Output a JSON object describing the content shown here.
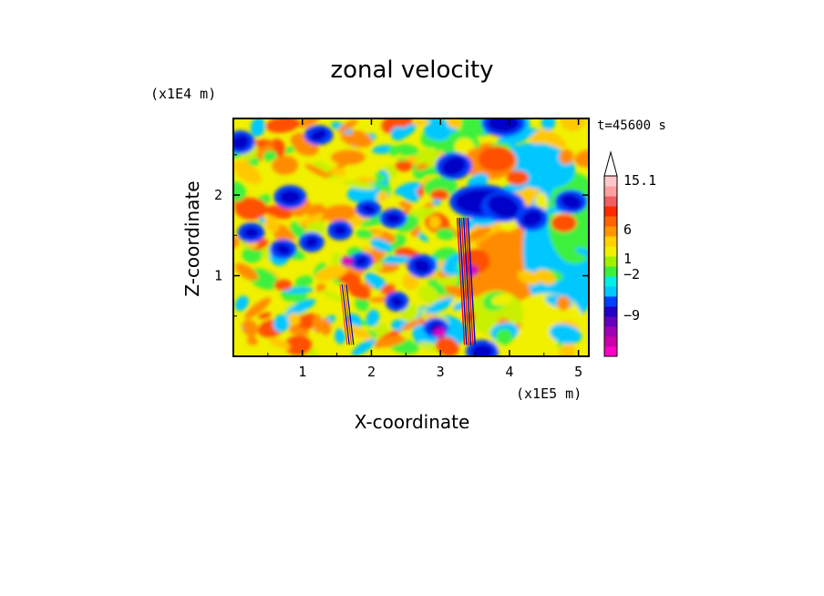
{
  "chart_data": {
    "type": "heatmap",
    "title": "zonal velocity",
    "time_label": "t=45600 s",
    "xlabel": "X-coordinate",
    "ylabel": "Z-coordinate",
    "x_unit": "(x1E5 m)",
    "y_unit": "(x1E4 m)",
    "xlim": [
      0.0,
      5.15
    ],
    "ylim": [
      0.0,
      2.95
    ],
    "x_ticks": [
      "1",
      "2",
      "3",
      "4",
      "5"
    ],
    "y_ticks": [
      "1",
      "2"
    ],
    "colorbar": {
      "tick_labels": [
        "15.1",
        "6",
        "1",
        "-2",
        "-9"
      ],
      "colors": [
        "#ff00c8",
        "#cc00a8",
        "#a000b4",
        "#6600c0",
        "#2200c8",
        "#0040ff",
        "#00c8ff",
        "#00f0e6",
        "#3cf03c",
        "#a0f000",
        "#f0f000",
        "#ffd200",
        "#ff9600",
        "#ff6400",
        "#ff2a00",
        "#f06060",
        "#ffa0a0",
        "#ffc8c8"
      ]
    },
    "contour_colors": {
      "magenta": "#ff00c8",
      "purple": "#a000b4",
      "dark_blue": "#0000c8",
      "blue": "#0040ff",
      "cyan": "#00c8ff",
      "green": "#3cf03c",
      "yellow_green": "#c8f000",
      "yellow": "#f0f000",
      "light_orange": "#ffc800",
      "orange": "#ff8c00",
      "red_orange": "#ff5000",
      "red": "#ff0000"
    }
  }
}
